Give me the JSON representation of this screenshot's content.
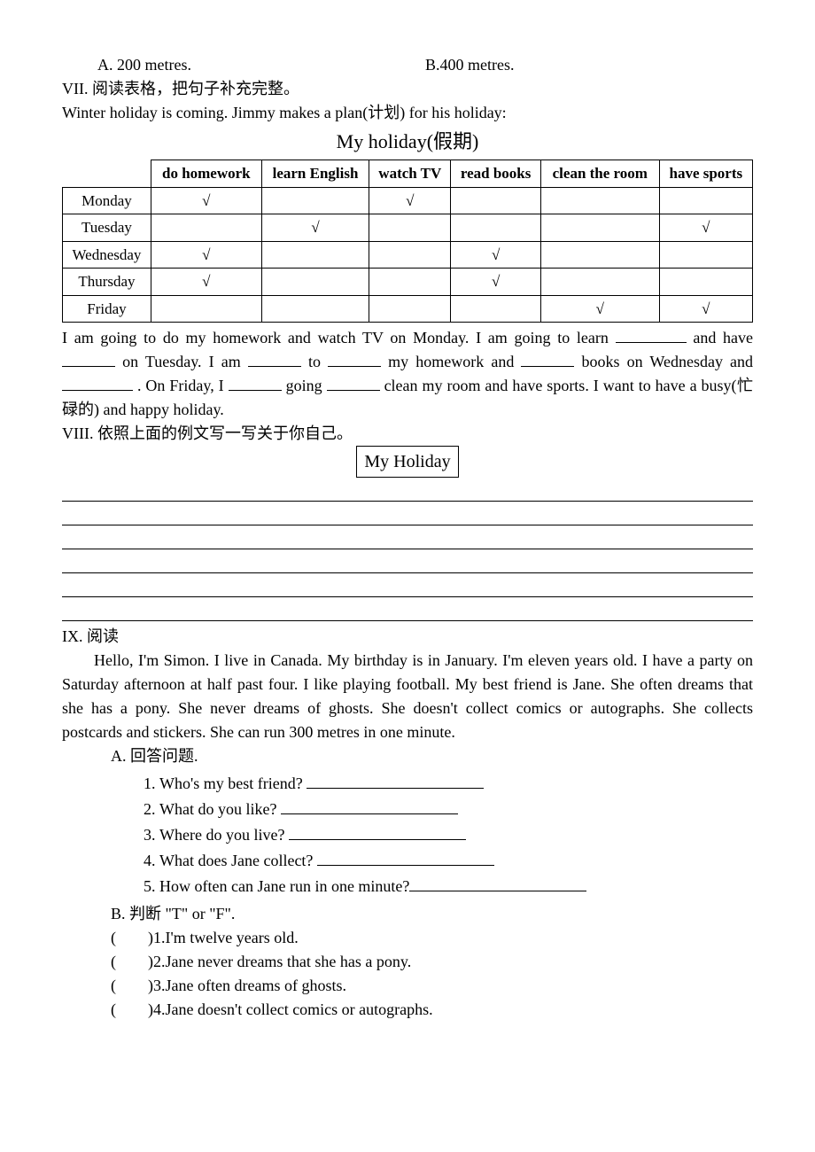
{
  "top": {
    "optA": "A. 200 metres.",
    "optB": "B.400 metres."
  },
  "sec7": {
    "heading": "VII. 阅读表格，把句子补充完整。",
    "intro": "Winter holiday is coming. Jimmy makes a plan(计划) for his holiday:",
    "tableTitle": "My holiday(假期)",
    "columns": [
      "",
      "do homework",
      "learn English",
      "watch TV",
      "read books",
      "clean the room",
      "have sports"
    ],
    "rows": [
      [
        "Monday",
        "√",
        "",
        "√",
        "",
        "",
        ""
      ],
      [
        "Tuesday",
        "",
        "√",
        "",
        "",
        "",
        "√"
      ],
      [
        "Wednesday",
        "√",
        "",
        "",
        "√",
        "",
        ""
      ],
      [
        "Thursday",
        "√",
        "",
        "",
        "√",
        "",
        ""
      ],
      [
        "Friday",
        "",
        "",
        "",
        "",
        "√",
        "√"
      ]
    ],
    "fill": {
      "p1a": "I am going to do my homework and watch TV on Monday. I am going to learn ",
      "p1b": " and have ",
      "p1c": "on Tuesday. I am ",
      "p1d": "to ",
      "p1e": " my homework and ",
      "p1f": "books on Wednesday and",
      "p1g": ". On Friday, I ",
      "p1h": " going ",
      "p1i": "clean my room and have sports. I want to have a busy(忙碌的) and happy holiday."
    }
  },
  "sec8": {
    "heading": "VIII. 依照上面的例文写一写关于你自己。",
    "boxTitle": "My Holiday"
  },
  "sec9": {
    "heading": "IX. 阅读",
    "passage": "Hello, I'm Simon. I live in Canada. My birthday is in January. I'm eleven years old. I have a party on Saturday afternoon at half past four. I like playing football. My best friend is Jane. She often dreams that she has a pony. She never dreams of ghosts. She doesn't collect comics or autographs. She collects postcards and stickers. She can run 300 metres in one minute.",
    "partA": {
      "heading": "A. 回答问题.",
      "q1": "Who's my best friend? ",
      "q2": "What do you like? ",
      "q3": "Where do you live? ",
      "q4": "What does Jane collect? ",
      "q5": "How often can Jane run in one minute?"
    },
    "partB": {
      "heading": "B. 判断 \"T\" or \"F\".",
      "items": [
        "1.I'm twelve years old.",
        "2.Jane never dreams that she has a pony.",
        "3.Jane often dreams of ghosts.",
        "4.Jane doesn't collect comics or autographs."
      ]
    }
  }
}
